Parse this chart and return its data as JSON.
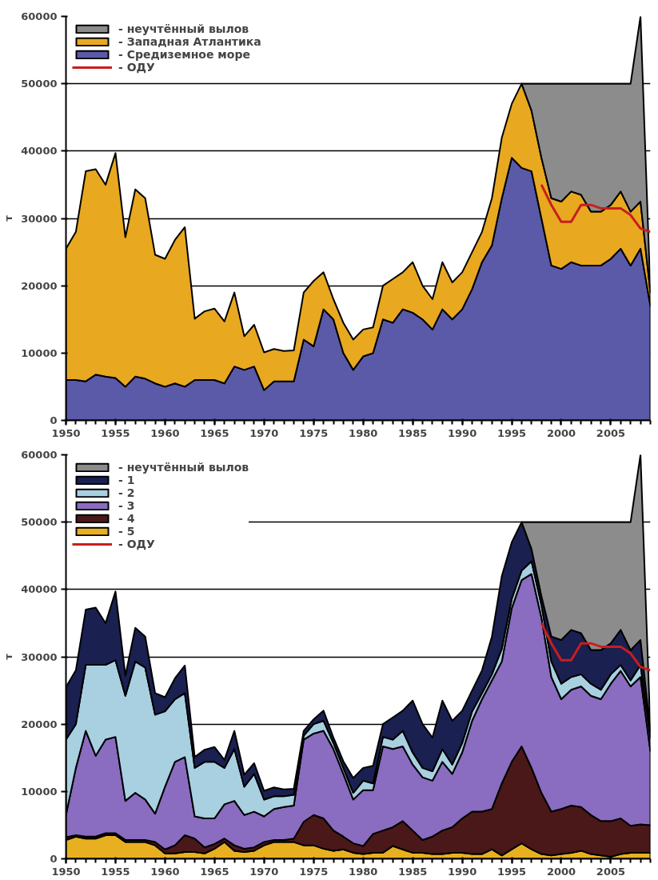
{
  "chart_data": [
    {
      "type": "area",
      "stacked": true,
      "ylabel": "т",
      "legend": "top left",
      "grid": "y",
      "x": [
        1950,
        1951,
        1952,
        1953,
        1954,
        1955,
        1956,
        1957,
        1958,
        1959,
        1960,
        1961,
        1962,
        1963,
        1964,
        1965,
        1966,
        1967,
        1968,
        1969,
        1970,
        1971,
        1972,
        1973,
        1974,
        1975,
        1976,
        1977,
        1978,
        1979,
        1980,
        1981,
        1982,
        1983,
        1984,
        1985,
        1986,
        1987,
        1988,
        1989,
        1990,
        1991,
        1992,
        1993,
        1994,
        1995,
        1996,
        1997,
        1998,
        1999,
        2000,
        2001,
        2002,
        2003,
        2004,
        2005,
        2006,
        2007,
        2008,
        2009
      ],
      "xlim": [
        1950,
        2009
      ],
      "xticks": [
        1950,
        1955,
        1960,
        1965,
        1970,
        1975,
        1980,
        1985,
        1990,
        1995,
        2000,
        2005
      ],
      "ylim": [
        0,
        60000
      ],
      "yticks": [
        0,
        10000,
        20000,
        30000,
        40000,
        50000,
        60000
      ],
      "series": [
        {
          "name": "- Средиземное море",
          "color": "#5a5aa8",
          "values": [
            6000,
            6000,
            5800,
            6800,
            6500,
            6300,
            5000,
            6500,
            6200,
            5500,
            5000,
            5500,
            5000,
            6000,
            6000,
            6000,
            5500,
            8000,
            7500,
            8000,
            4500,
            5800,
            5800,
            5800,
            12000,
            11000,
            16500,
            15000,
            10000,
            7500,
            9500,
            10000,
            15000,
            14500,
            16500,
            16000,
            15000,
            13500,
            16500,
            15000,
            16500,
            19500,
            23500,
            26000,
            33000,
            39000,
            37500,
            37000,
            30000,
            23000,
            22500,
            23500,
            23000,
            23000,
            23000,
            24000,
            25500,
            23000,
            25500,
            17000
          ]
        },
        {
          "name": "- Западная Атлантика",
          "color": "#e8a820",
          "values": [
            19500,
            22000,
            31200,
            30500,
            28500,
            33400,
            22200,
            27800,
            26800,
            19100,
            19000,
            21300,
            23700,
            9100,
            10200,
            10600,
            9200,
            11000,
            5000,
            6200,
            5600,
            4800,
            4500,
            4600,
            7000,
            9700,
            5500,
            3000,
            4500,
            4500,
            4000,
            3800,
            5000,
            6500,
            5500,
            7500,
            5000,
            4500,
            7000,
            5500,
            5500,
            5500,
            4500,
            7000,
            9000,
            8000,
            12500,
            9000,
            9000,
            10000,
            10000,
            10500,
            10500,
            8000,
            8000,
            8000,
            8500,
            8000,
            7000,
            2000
          ]
        },
        {
          "name": "- неучтённый вылов",
          "color": "#8c8c8c",
          "values": [
            null,
            null,
            null,
            null,
            null,
            null,
            null,
            null,
            null,
            null,
            null,
            null,
            null,
            null,
            null,
            null,
            null,
            null,
            null,
            null,
            null,
            null,
            null,
            null,
            null,
            null,
            null,
            null,
            null,
            null,
            null,
            null,
            null,
            null,
            null,
            null,
            null,
            null,
            null,
            null,
            null,
            null,
            null,
            null,
            null,
            null,
            0,
            4000,
            11000,
            17000,
            17500,
            16000,
            16500,
            19000,
            19000,
            18000,
            16000,
            19000,
            27500,
            0
          ]
        },
        {
          "name": "- ОДУ",
          "type": "line",
          "color": "#c81e1e",
          "x": [
            1998,
            1999,
            2000,
            2001,
            2002,
            2003,
            2004,
            2005,
            2006,
            2007,
            2008,
            2009
          ],
          "values": [
            35000,
            32000,
            29500,
            29500,
            32000,
            32000,
            31500,
            31500,
            31500,
            30500,
            28500,
            28000
          ]
        }
      ]
    },
    {
      "type": "area",
      "stacked": true,
      "ylabel": "т",
      "legend": "top left",
      "grid": "y",
      "x": [
        1950,
        1951,
        1952,
        1953,
        1954,
        1955,
        1956,
        1957,
        1958,
        1959,
        1960,
        1961,
        1962,
        1963,
        1964,
        1965,
        1966,
        1967,
        1968,
        1969,
        1970,
        1971,
        1972,
        1973,
        1974,
        1975,
        1976,
        1977,
        1978,
        1979,
        1980,
        1981,
        1982,
        1983,
        1984,
        1985,
        1986,
        1987,
        1988,
        1989,
        1990,
        1991,
        1992,
        1993,
        1994,
        1995,
        1996,
        1997,
        1998,
        1999,
        2000,
        2001,
        2002,
        2003,
        2004,
        2005,
        2006,
        2007,
        2008,
        2009
      ],
      "xlim": [
        1950,
        2009
      ],
      "xticks": [
        1950,
        1955,
        1960,
        1965,
        1970,
        1975,
        1980,
        1985,
        1990,
        1995,
        2000,
        2005
      ],
      "ylim": [
        0,
        60000
      ],
      "yticks": [
        0,
        10000,
        20000,
        30000,
        40000,
        50000,
        60000
      ],
      "series": [
        {
          "name": "- 5",
          "color": "#e8b020",
          "values": [
            2800,
            3300,
            3000,
            3000,
            3500,
            3500,
            2500,
            2500,
            2500,
            2000,
            800,
            800,
            1000,
            1000,
            800,
            1500,
            2500,
            1200,
            1000,
            1200,
            2000,
            2500,
            2500,
            2500,
            2000,
            2000,
            1500,
            1200,
            1400,
            900,
            700,
            900,
            900,
            1900,
            1400,
            900,
            900,
            700,
            700,
            900,
            900,
            700,
            700,
            1400,
            500,
            1400,
            2300,
            1400,
            700,
            500,
            700,
            900,
            1200,
            700,
            500,
            300,
            700,
            900,
            900,
            900
          ]
        },
        {
          "name": "- 4",
          "color": "#4a1818",
          "values": [
            400,
            200,
            300,
            300,
            300,
            300,
            300,
            300,
            300,
            500,
            600,
            1200,
            2500,
            2000,
            900,
            700,
            500,
            800,
            500,
            500,
            500,
            300,
            300,
            500,
            3500,
            4500,
            4500,
            3000,
            1900,
            1400,
            1200,
            2800,
            3300,
            2800,
            4200,
            3300,
            1900,
            2600,
            3500,
            3800,
            5100,
            6300,
            6300,
            6000,
            10700,
            13000,
            14400,
            12100,
            9100,
            6500,
            6700,
            7000,
            6500,
            5800,
            5100,
            5300,
            5300,
            4000,
            4200,
            4100
          ]
        },
        {
          "name": "- 3",
          "color": "#8a6cc0",
          "values": [
            3300,
            10000,
            15700,
            12000,
            13900,
            14300,
            5800,
            7000,
            6000,
            4200,
            9300,
            12400,
            11600,
            3300,
            4300,
            3800,
            5100,
            6600,
            5000,
            5300,
            3800,
            4600,
            4900,
            4900,
            12200,
            12100,
            13000,
            12100,
            9300,
            6500,
            8300,
            6500,
            12500,
            11600,
            11100,
            9800,
            9300,
            8300,
            10200,
            7900,
            9800,
            13500,
            16700,
            19100,
            18100,
            22800,
            24700,
            28800,
            26000,
            20000,
            16300,
            17200,
            17900,
            17700,
            18100,
            20400,
            21900,
            20700,
            21900,
            11000
          ]
        },
        {
          "name": "- 2",
          "color": "#a8d0e0",
          "values": [
            11200,
            6500,
            9800,
            13500,
            11100,
            11400,
            15600,
            19500,
            19600,
            14700,
            11200,
            9300,
            9500,
            7200,
            8400,
            8400,
            5400,
            7700,
            4200,
            5600,
            2500,
            1900,
            1600,
            1600,
            600,
            1400,
            1500,
            900,
            900,
            1000,
            1400,
            1000,
            1400,
            1400,
            2300,
            1800,
            1400,
            1400,
            1900,
            1400,
            1400,
            1400,
            900,
            900,
            1900,
            1400,
            1400,
            1900,
            1900,
            2300,
            2300,
            1900,
            1800,
            1800,
            1400,
            1400,
            900,
            900,
            1800,
            2000
          ]
        },
        {
          "name": "- 1",
          "color": "#1a2050",
          "values": [
            7800,
            8000,
            8200,
            8500,
            6200,
            10200,
            3000,
            5000,
            4600,
            3200,
            2100,
            3100,
            4100,
            1600,
            1800,
            2200,
            1200,
            2700,
            1800,
            1600,
            1300,
            1300,
            1000,
            900,
            700,
            700,
            1500,
            800,
            1000,
            2200,
            1900,
            2600,
            1900,
            3300,
            3000,
            7700,
            6500,
            5000,
            7200,
            6500,
            4800,
            3100,
            3400,
            5600,
            10800,
            8400,
            7200,
            1800,
            1300,
            3700,
            6500,
            7000,
            6100,
            5000,
            5900,
            4600,
            5200,
            4500,
            3700,
            1000
          ]
        },
        {
          "name": "- неучтённый вылов",
          "color": "#8c8c8c",
          "values": [
            null,
            null,
            null,
            null,
            null,
            null,
            null,
            null,
            null,
            null,
            null,
            null,
            null,
            null,
            null,
            null,
            null,
            null,
            null,
            null,
            null,
            null,
            null,
            null,
            null,
            null,
            null,
            null,
            null,
            null,
            null,
            null,
            null,
            null,
            null,
            null,
            null,
            null,
            null,
            null,
            null,
            null,
            null,
            null,
            null,
            null,
            0,
            4000,
            11000,
            17000,
            17500,
            16000,
            16500,
            19000,
            19000,
            18000,
            16000,
            19000,
            27500,
            0
          ]
        },
        {
          "name": "- ОДУ",
          "type": "line",
          "color": "#c81e1e",
          "x": [
            1998,
            1999,
            2000,
            2001,
            2002,
            2003,
            2004,
            2005,
            2006,
            2007,
            2008,
            2009
          ],
          "values": [
            35000,
            32000,
            29500,
            29500,
            32000,
            32000,
            31500,
            31500,
            31500,
            30500,
            28500,
            28000
          ]
        }
      ]
    }
  ]
}
